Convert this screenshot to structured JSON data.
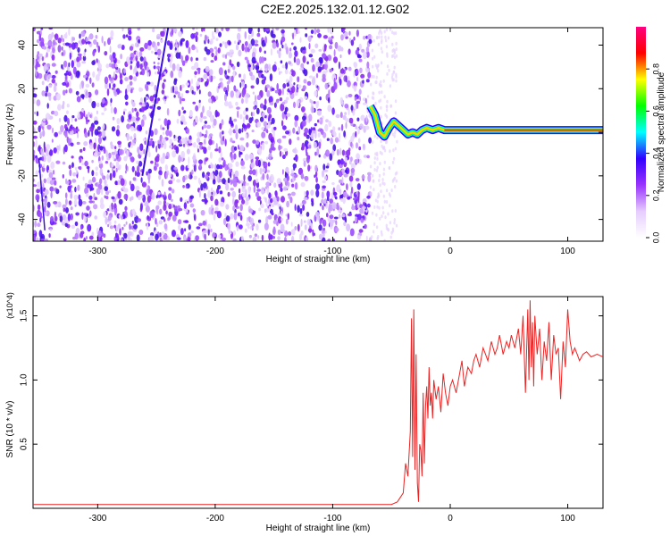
{
  "title": "C2E2.2025.132.01.12.G02",
  "chart_data": [
    {
      "type": "heatmap",
      "xlabel": "Height of straight line (km)",
      "ylabel": "Frequency (Hz)",
      "xlim": [
        -355,
        130
      ],
      "ylim": [
        -50,
        48
      ],
      "xticks": [
        -300,
        -200,
        -100,
        0,
        100
      ],
      "yticks": [
        -40,
        -20,
        0,
        20,
        40
      ],
      "colorbar": {
        "label": "Normalized spectral amplitude",
        "range": [
          0,
          1
        ],
        "ticks": [
          "0.0",
          "0.2",
          "0.4",
          "0.6",
          "0.8"
        ],
        "colors": [
          "#ffffff",
          "#e6ccff",
          "#9933ff",
          "#3300ff",
          "#00ffff",
          "#00ff00",
          "#ffff00",
          "#ff0000",
          "#ff0080"
        ]
      },
      "signal_trace": {
        "x": [
          -68,
          -64,
          -60,
          -56,
          -52,
          -48,
          -44,
          -40,
          -36,
          -32,
          -28,
          -24,
          -20,
          -15,
          -10,
          -5,
          0,
          20,
          50,
          80,
          100,
          130
        ],
        "y": [
          12,
          8,
          0,
          -2,
          2,
          5,
          3,
          1,
          -1,
          0,
          -1,
          1,
          2,
          1,
          2,
          1,
          1,
          1,
          1,
          1,
          1,
          1
        ]
      }
    },
    {
      "type": "line",
      "xlabel": "Height of straight line (km)",
      "ylabel": "SNR (10 * v/v)",
      "y_multiplier": "(x10^4)",
      "xlim": [
        -355,
        130
      ],
      "ylim": [
        0,
        1.65
      ],
      "xticks": [
        -300,
        -200,
        -100,
        0,
        100
      ],
      "yticks": [
        0.5,
        1.0,
        1.5
      ],
      "ytick_labels": [
        "0.5",
        "1.0",
        "1.5"
      ],
      "series": [
        {
          "color": "#ee2222",
          "x": [
            -355,
            -300,
            -200,
            -100,
            -60,
            -50,
            -45,
            -40,
            -38,
            -36,
            -34,
            -33,
            -32,
            -31,
            -30,
            -29,
            -28,
            -27,
            -26,
            -25,
            -24,
            -23,
            -22,
            -21,
            -20,
            -19,
            -18,
            -17,
            -16,
            -15,
            -14,
            -12,
            -10,
            -8,
            -6,
            -4,
            -2,
            0,
            2,
            5,
            8,
            10,
            12,
            15,
            18,
            20,
            22,
            25,
            28,
            30,
            32,
            35,
            38,
            40,
            42,
            45,
            48,
            50,
            52,
            55,
            58,
            60,
            62,
            64,
            66,
            67,
            68,
            69,
            70,
            71,
            72,
            74,
            76,
            78,
            80,
            82,
            84,
            86,
            88,
            90,
            92,
            94,
            96,
            98,
            100,
            102,
            104,
            106,
            108,
            110,
            113,
            116,
            120,
            125,
            130
          ],
          "y": [
            0.03,
            0.03,
            0.03,
            0.03,
            0.03,
            0.03,
            0.05,
            0.12,
            0.35,
            0.25,
            0.6,
            1.48,
            0.4,
            1.55,
            0.3,
            1.2,
            0.2,
            0.05,
            0.5,
            0.45,
            0.25,
            0.9,
            0.35,
            0.8,
            0.95,
            0.7,
            1.1,
            0.8,
            0.9,
            0.7,
            1.0,
            0.85,
            0.95,
            0.75,
            1.05,
            0.9,
            0.8,
            0.95,
            1.0,
            0.9,
            1.05,
            1.15,
            0.95,
            1.1,
            1.05,
            1.15,
            1.2,
            1.1,
            1.25,
            1.2,
            1.15,
            1.3,
            1.2,
            1.25,
            1.35,
            1.2,
            1.3,
            1.25,
            1.35,
            1.25,
            1.4,
            1.2,
            1.5,
            0.9,
            1.55,
            1.0,
            1.62,
            1.1,
            1.45,
            0.95,
            1.5,
            1.2,
            1.4,
            1.0,
            1.3,
            1.15,
            1.45,
            1.0,
            1.35,
            1.2,
            1.25,
            0.85,
            1.3,
            1.1,
            1.55,
            1.3,
            1.2,
            1.25,
            1.2,
            1.15,
            1.2,
            1.22,
            1.18,
            1.2,
            1.18
          ]
        }
      ]
    }
  ]
}
